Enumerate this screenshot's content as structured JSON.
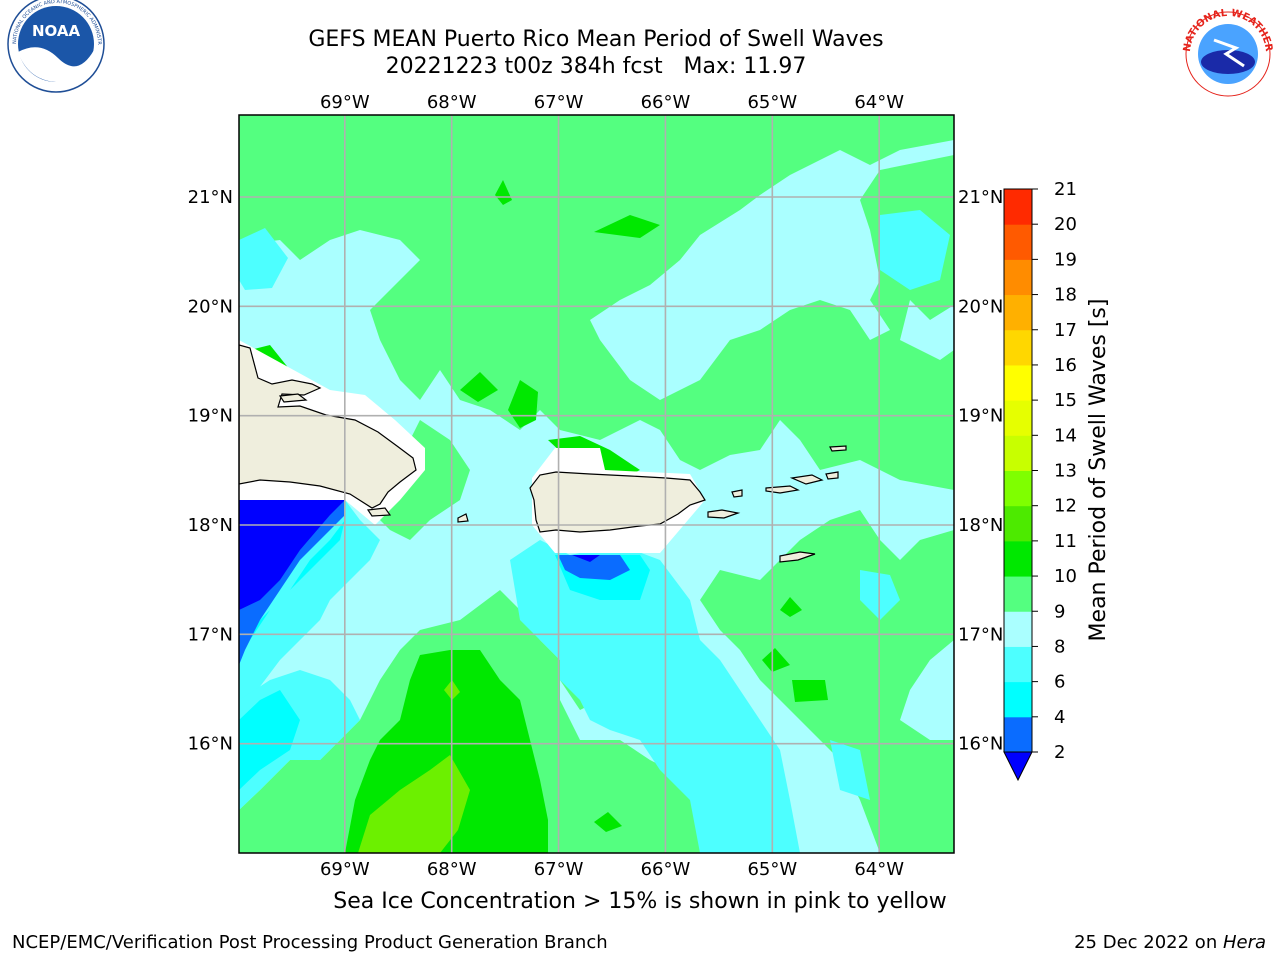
{
  "header": {
    "title_line1": "GEFS MEAN Puerto Rico Mean Period of Swell Waves",
    "title_line2": "20221223 t00z 384h fcst   Max: 11.97"
  },
  "logos": {
    "left": "NOAA",
    "right_ring": "NATIONAL WEATHER SERVICE",
    "left_ring": "NATIONAL OCEANIC AND ATMOSPHERIC ADMINISTRATION · U.S. DEPARTMENT OF COMMERCE"
  },
  "map": {
    "lon_labels": [
      "69°W",
      "68°W",
      "67°W",
      "66°W",
      "65°W",
      "64°W"
    ],
    "lat_labels": [
      "21°N",
      "20°N",
      "19°N",
      "18°N",
      "17°N",
      "16°N"
    ],
    "lon_range": [
      -69.99,
      -63.3
    ],
    "lat_range": [
      15.0,
      21.75
    ]
  },
  "colorbar": {
    "label": "Mean Period of Swell Waves [s]",
    "ticks": [
      "2",
      "4",
      "6",
      "8",
      "9",
      "10",
      "11",
      "12",
      "13",
      "14",
      "15",
      "16",
      "17",
      "18",
      "19",
      "20",
      "21"
    ],
    "colors": [
      "#0000ff",
      "#0a6cff",
      "#00ffff",
      "#4dffff",
      "#aaffff",
      "#54ff80",
      "#00e800",
      "#4dea00",
      "#7fff00",
      "#c8ff00",
      "#e6ff00",
      "#ffff00",
      "#ffd700",
      "#ffb000",
      "#ff8c00",
      "#ff5a00",
      "#ff2a00",
      "#ff0000"
    ]
  },
  "note": "Sea Ice Concentration > 15% is shown in pink to yellow",
  "footer": {
    "left": "NCEP/EMC/Verification Post Processing Product Generation Branch",
    "right_date": "25 Dec 2022 on ",
    "right_host": "Hera"
  }
}
